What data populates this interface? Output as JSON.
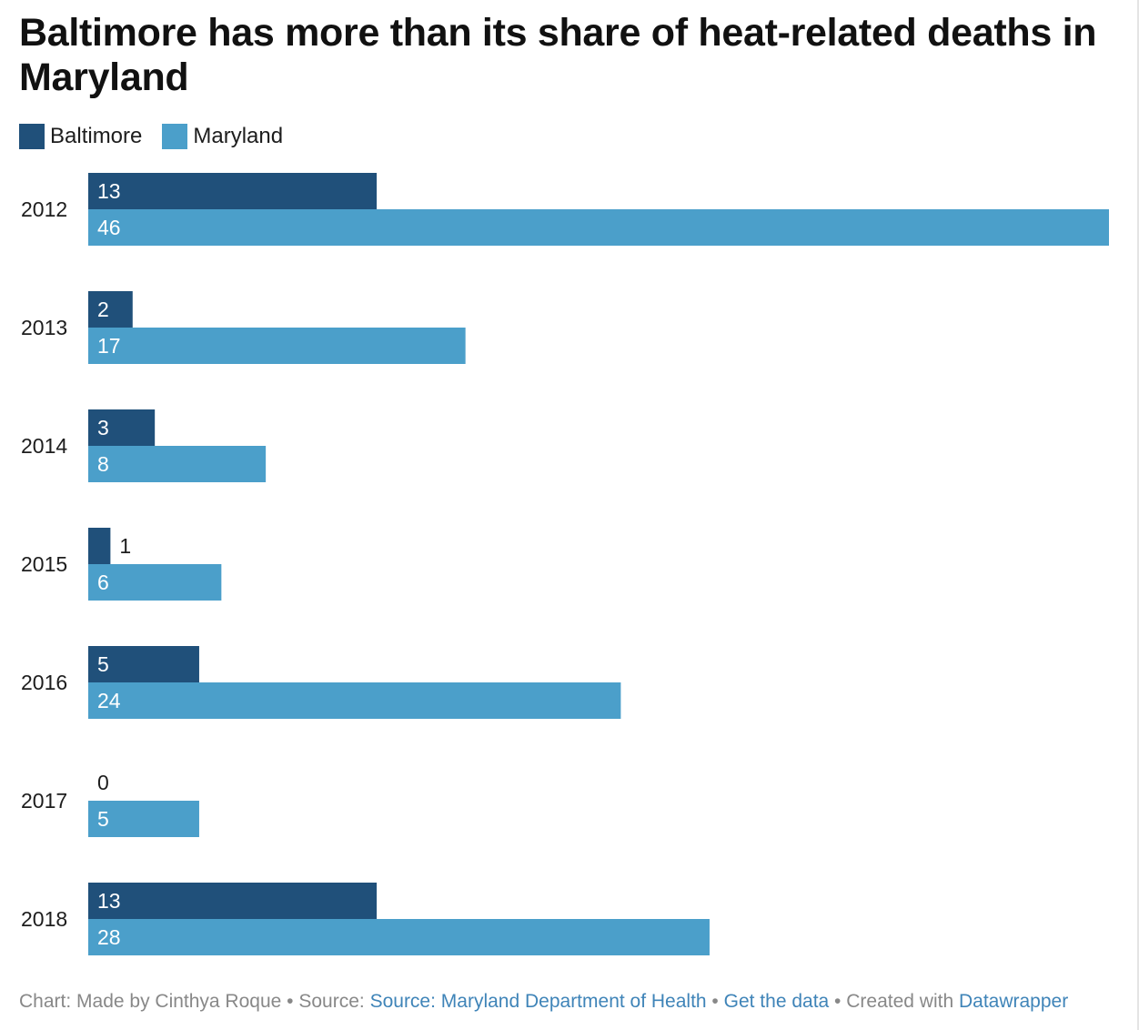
{
  "title": "Baltimore has more than its share of heat-related deaths in Maryland",
  "legend": [
    {
      "label": "Baltimore",
      "color": "#20507a"
    },
    {
      "label": "Maryland",
      "color": "#4b9fca"
    }
  ],
  "footer": {
    "prefix": "Chart: Made by Cinthya Roque",
    "sep1": " • ",
    "source_label": "Source: ",
    "source_link": "Source: Maryland Department of Health",
    "sep2": " • ",
    "data_link": "Get the data",
    "sep3": " • ",
    "created_label": "Created with ",
    "created_link": "Datawrapper"
  },
  "chart_data": {
    "type": "bar",
    "orientation": "horizontal",
    "title": "Baltimore has more than its share of heat-related deaths in Maryland",
    "categories": [
      "2012",
      "2013",
      "2014",
      "2015",
      "2016",
      "2017",
      "2018"
    ],
    "series": [
      {
        "name": "Baltimore",
        "color": "#20507a",
        "values": [
          13,
          2,
          3,
          1,
          5,
          0,
          13
        ]
      },
      {
        "name": "Maryland",
        "color": "#4b9fca",
        "values": [
          46,
          17,
          8,
          6,
          24,
          5,
          28
        ]
      }
    ],
    "xlim": [
      0,
      46
    ],
    "grid": false,
    "legend_position": "top-left",
    "data_labels": true
  }
}
